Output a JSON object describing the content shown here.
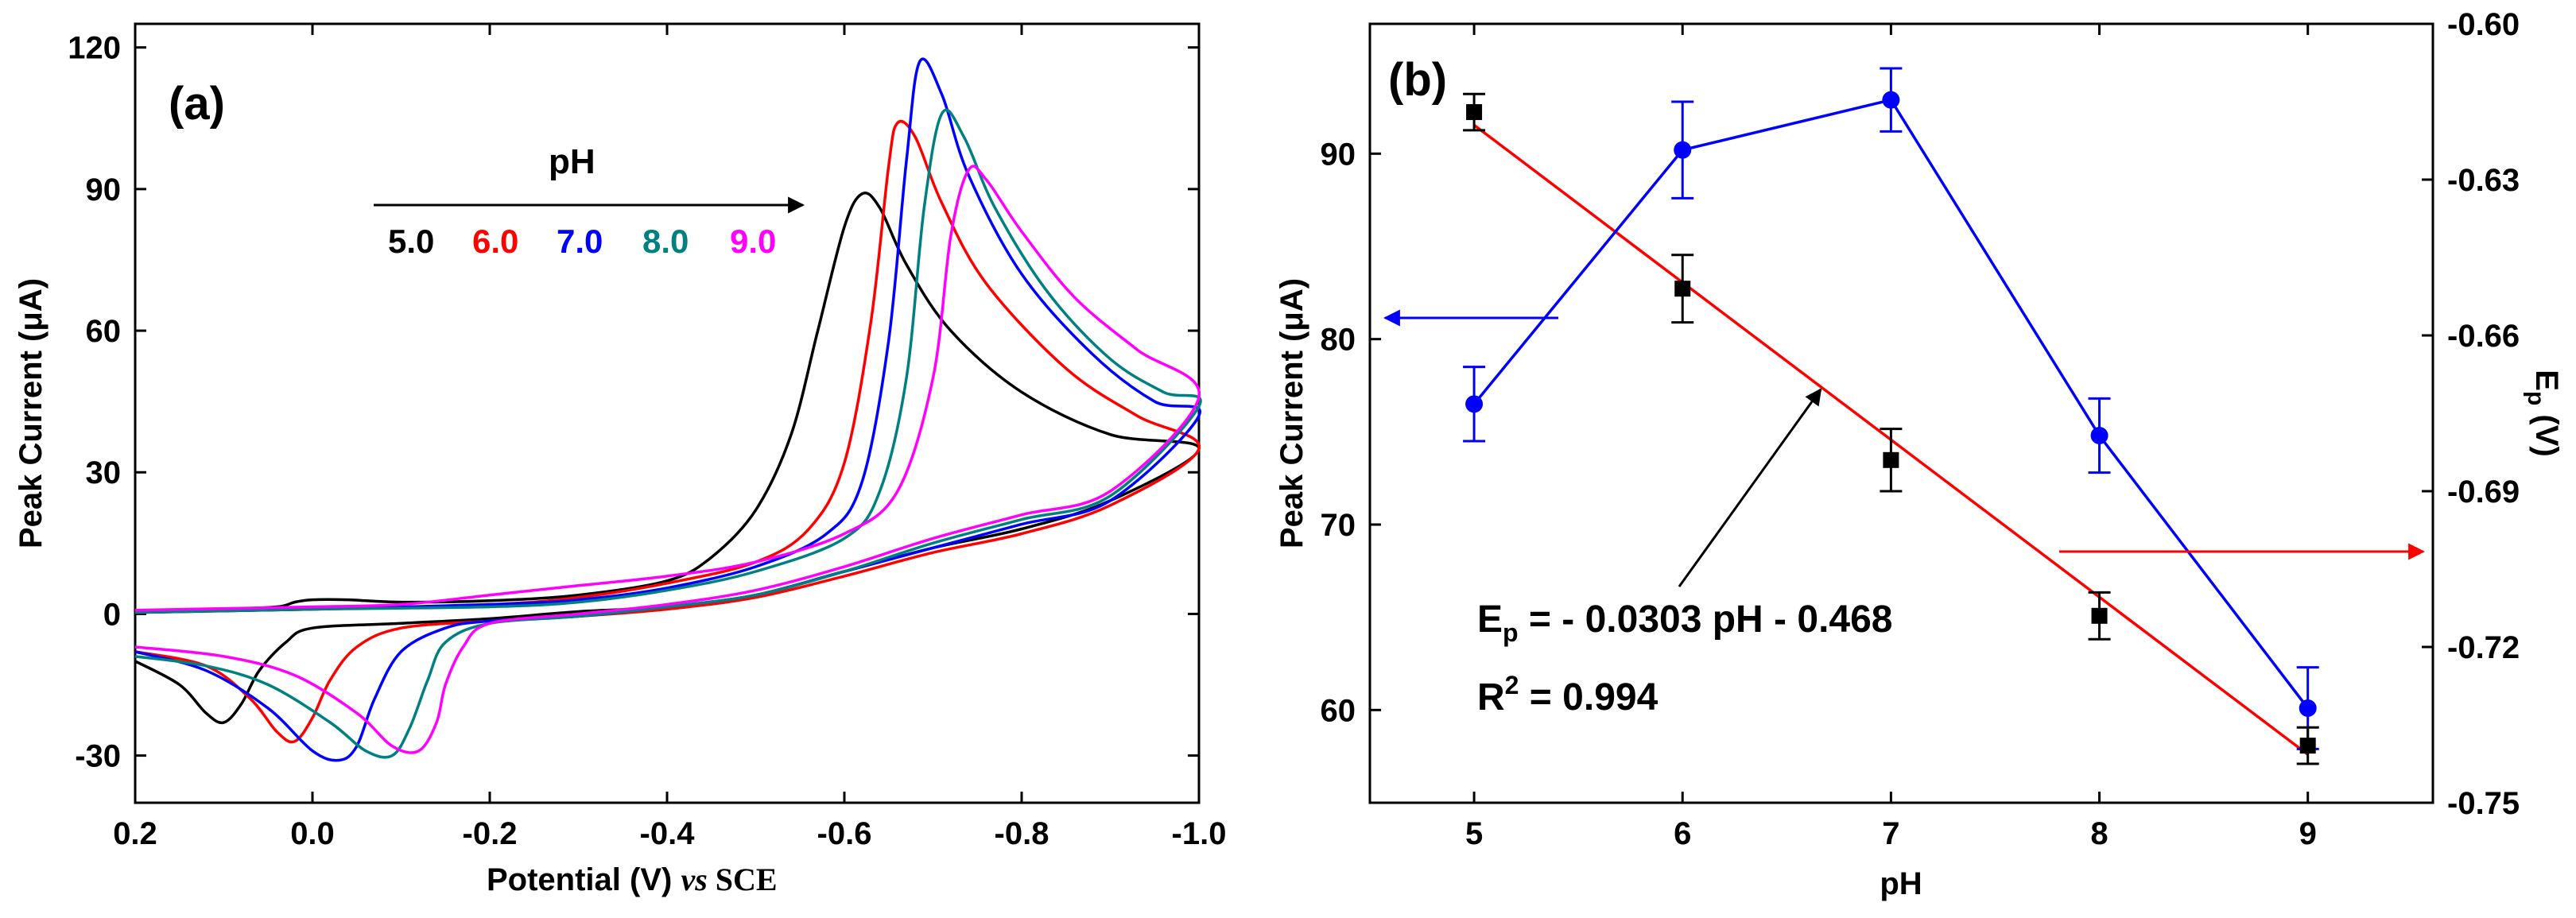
{
  "chart_data": [
    {
      "panel": "(a)",
      "type": "line",
      "xlabel_parts": [
        "Potential (V) ",
        "vs",
        " SCE"
      ],
      "ylabel": "Peak Current (μA)",
      "xlim": [
        0.2,
        -1.0
      ],
      "ylim": [
        -40,
        125
      ],
      "x_ticks": [
        0.2,
        0.0,
        -0.2,
        -0.4,
        -0.6,
        -0.8,
        -1.0
      ],
      "x_tick_labels": [
        "0.2",
        "0.0",
        "-0.2",
        "-0.4",
        "-0.6",
        "-0.8",
        "-1.0"
      ],
      "y_ticks": [
        -30,
        0,
        30,
        60,
        90,
        120
      ],
      "y_tick_labels": [
        "-30",
        "0",
        "30",
        "60",
        "90",
        "120"
      ],
      "annotation_title": "pH",
      "series": [
        {
          "name": "5.0",
          "color": "#000000",
          "forward": [
            [
              0.2,
              0.5
            ],
            [
              0.1,
              1
            ],
            [
              0.04,
              1.5
            ],
            [
              0.02,
              2.5
            ],
            [
              0.0,
              3
            ],
            [
              -0.04,
              3
            ],
            [
              -0.1,
              2.5
            ],
            [
              -0.2,
              2.8
            ],
            [
              -0.3,
              4
            ],
            [
              -0.4,
              7
            ],
            [
              -0.45,
              12
            ],
            [
              -0.5,
              22
            ],
            [
              -0.54,
              38
            ],
            [
              -0.57,
              60
            ],
            [
              -0.6,
              82
            ],
            [
              -0.62,
              89
            ],
            [
              -0.64,
              86
            ],
            [
              -0.67,
              74
            ],
            [
              -0.72,
              60
            ],
            [
              -0.8,
              47
            ],
            [
              -0.9,
              38
            ],
            [
              -1.0,
              35
            ]
          ],
          "reverse": [
            [
              -1.0,
              35
            ],
            [
              -0.9,
              24
            ],
            [
              -0.8,
              18
            ],
            [
              -0.7,
              14
            ],
            [
              -0.6,
              9
            ],
            [
              -0.5,
              4
            ],
            [
              -0.4,
              1.5
            ],
            [
              -0.3,
              0.5
            ],
            [
              -0.2,
              -1
            ],
            [
              -0.1,
              -2
            ],
            [
              0.0,
              -3
            ],
            [
              0.03,
              -6
            ],
            [
              0.06,
              -12
            ],
            [
              0.08,
              -19
            ],
            [
              0.1,
              -23
            ],
            [
              0.12,
              -21
            ],
            [
              0.15,
              -15
            ],
            [
              0.2,
              -10
            ]
          ]
        },
        {
          "name": "6.0",
          "color": "#ff0000",
          "forward": [
            [
              0.2,
              0.3
            ],
            [
              0.0,
              1
            ],
            [
              -0.2,
              2
            ],
            [
              -0.3,
              3.5
            ],
            [
              -0.4,
              6.5
            ],
            [
              -0.5,
              11
            ],
            [
              -0.56,
              18
            ],
            [
              -0.6,
              32
            ],
            [
              -0.63,
              62
            ],
            [
              -0.65,
              95
            ],
            [
              -0.66,
              104
            ],
            [
              -0.68,
              101
            ],
            [
              -0.71,
              87
            ],
            [
              -0.76,
              70
            ],
            [
              -0.85,
              52
            ],
            [
              -0.93,
              42
            ],
            [
              -1.0,
              35
            ]
          ],
          "reverse": [
            [
              -1.0,
              33
            ],
            [
              -0.9,
              23
            ],
            [
              -0.8,
              17
            ],
            [
              -0.7,
              13
            ],
            [
              -0.6,
              8
            ],
            [
              -0.5,
              3.5
            ],
            [
              -0.4,
              1
            ],
            [
              -0.3,
              -0.5
            ],
            [
              -0.2,
              -1.5
            ],
            [
              -0.1,
              -3
            ],
            [
              -0.05,
              -7
            ],
            [
              -0.02,
              -14
            ],
            [
              0.0,
              -22
            ],
            [
              0.02,
              -27
            ],
            [
              0.04,
              -25
            ],
            [
              0.07,
              -18
            ],
            [
              0.12,
              -11
            ],
            [
              0.2,
              -8
            ]
          ]
        },
        {
          "name": "7.0",
          "color": "#0000ff",
          "forward": [
            [
              0.2,
              0.3
            ],
            [
              0.0,
              1
            ],
            [
              -0.2,
              2
            ],
            [
              -0.3,
              3
            ],
            [
              -0.4,
              5.5
            ],
            [
              -0.5,
              10
            ],
            [
              -0.58,
              17
            ],
            [
              -0.62,
              28
            ],
            [
              -0.65,
              58
            ],
            [
              -0.67,
              96
            ],
            [
              -0.685,
              117
            ],
            [
              -0.71,
              110
            ],
            [
              -0.74,
              93
            ],
            [
              -0.8,
              72
            ],
            [
              -0.88,
              55
            ],
            [
              -0.95,
              45
            ],
            [
              -1.0,
              42
            ]
          ],
          "reverse": [
            [
              -1.0,
              38
            ],
            [
              -0.9,
              24
            ],
            [
              -0.8,
              19
            ],
            [
              -0.7,
              14
            ],
            [
              -0.6,
              9
            ],
            [
              -0.5,
              4
            ],
            [
              -0.4,
              1.5
            ],
            [
              -0.3,
              -0.5
            ],
            [
              -0.2,
              -1.5
            ],
            [
              -0.15,
              -3
            ],
            [
              -0.1,
              -8
            ],
            [
              -0.07,
              -18
            ],
            [
              -0.05,
              -28
            ],
            [
              -0.03,
              -31
            ],
            [
              0.0,
              -29
            ],
            [
              0.05,
              -20
            ],
            [
              0.12,
              -12
            ],
            [
              0.2,
              -8
            ]
          ]
        },
        {
          "name": "8.0",
          "color": "#008080",
          "forward": [
            [
              0.2,
              0.3
            ],
            [
              0.0,
              1
            ],
            [
              -0.2,
              1.5
            ],
            [
              -0.3,
              2.5
            ],
            [
              -0.4,
              5
            ],
            [
              -0.5,
              9
            ],
            [
              -0.6,
              16
            ],
            [
              -0.64,
              26
            ],
            [
              -0.67,
              50
            ],
            [
              -0.69,
              86
            ],
            [
              -0.71,
              106
            ],
            [
              -0.735,
              101
            ],
            [
              -0.77,
              86
            ],
            [
              -0.83,
              68
            ],
            [
              -0.9,
              54
            ],
            [
              -0.96,
              47
            ],
            [
              -1.0,
              44
            ]
          ],
          "reverse": [
            [
              -1.0,
              40
            ],
            [
              -0.9,
              25
            ],
            [
              -0.8,
              20
            ],
            [
              -0.7,
              15
            ],
            [
              -0.6,
              9
            ],
            [
              -0.5,
              4
            ],
            [
              -0.4,
              1.5
            ],
            [
              -0.3,
              -0.5
            ],
            [
              -0.2,
              -2
            ],
            [
              -0.15,
              -6
            ],
            [
              -0.13,
              -14
            ],
            [
              -0.11,
              -24
            ],
            [
              -0.09,
              -30
            ],
            [
              -0.06,
              -29
            ],
            [
              -0.02,
              -23
            ],
            [
              0.05,
              -15
            ],
            [
              0.12,
              -11
            ],
            [
              0.2,
              -9
            ]
          ]
        },
        {
          "name": "9.0",
          "color": "#ff00ff",
          "forward": [
            [
              0.2,
              0.8
            ],
            [
              0.0,
              1.5
            ],
            [
              -0.1,
              2
            ],
            [
              -0.2,
              4
            ],
            [
              -0.3,
              6
            ],
            [
              -0.4,
              8
            ],
            [
              -0.5,
              11
            ],
            [
              -0.6,
              17
            ],
            [
              -0.66,
              26
            ],
            [
              -0.7,
              50
            ],
            [
              -0.72,
              80
            ],
            [
              -0.74,
              94
            ],
            [
              -0.76,
              92
            ],
            [
              -0.8,
              81
            ],
            [
              -0.86,
              67
            ],
            [
              -0.93,
              56
            ],
            [
              -1.0,
              46
            ]
          ],
          "reverse": [
            [
              -1.0,
              44
            ],
            [
              -0.9,
              26
            ],
            [
              -0.8,
              21
            ],
            [
              -0.7,
              16
            ],
            [
              -0.6,
              10
            ],
            [
              -0.5,
              5
            ],
            [
              -0.4,
              2
            ],
            [
              -0.3,
              0
            ],
            [
              -0.2,
              -2
            ],
            [
              -0.17,
              -7
            ],
            [
              -0.15,
              -15
            ],
            [
              -0.14,
              -23
            ],
            [
              -0.12,
              -29
            ],
            [
              -0.09,
              -28
            ],
            [
              -0.05,
              -21
            ],
            [
              0.02,
              -13
            ],
            [
              0.1,
              -9
            ],
            [
              0.2,
              -7
            ]
          ]
        }
      ]
    },
    {
      "panel": "(b)",
      "type": "line",
      "xlabel": "pH",
      "ylabel_left": "Peak Current (μA)",
      "ylabel_right_main": "E",
      "ylabel_right_sub": "p",
      "ylabel_right_unit": " (V)",
      "xlim": [
        4.5,
        9.6
      ],
      "ylim_left": [
        55,
        97
      ],
      "ylim_right": [
        -0.75,
        -0.6
      ],
      "x_ticks": [
        5,
        6,
        7,
        8,
        9
      ],
      "x_tick_labels": [
        "5",
        "6",
        "7",
        "8",
        "9"
      ],
      "y_ticks_left": [
        60,
        70,
        80,
        90
      ],
      "y_tick_labels_left": [
        "60",
        "70",
        "80",
        "90"
      ],
      "y_ticks_right": [
        -0.75,
        -0.72,
        -0.69,
        -0.66,
        -0.63,
        -0.6
      ],
      "y_tick_labels_right": [
        "-0.75",
        "-0.72",
        "-0.69",
        "-0.66",
        "-0.63",
        "-0.60"
      ],
      "series": [
        {
          "name": "Peak Current",
          "axis": "left",
          "color": "#0000ff",
          "x": [
            5,
            6,
            7,
            8,
            9
          ],
          "y": [
            76.5,
            90.2,
            92.9,
            74.8,
            60.1
          ],
          "error": [
            2.0,
            2.6,
            1.7,
            2.0,
            2.2
          ]
        },
        {
          "name": "Ep",
          "axis": "right",
          "color": "#000000",
          "x": [
            5,
            6,
            7,
            8,
            9
          ],
          "y": [
            -0.617,
            -0.651,
            -0.684,
            -0.714,
            -0.739
          ],
          "error": [
            0.0035,
            0.0065,
            0.006,
            0.0045,
            0.0035
          ]
        }
      ],
      "fit": {
        "color": "#ff0000",
        "axis": "right",
        "x": [
          5,
          9
        ],
        "y": [
          -0.6195,
          -0.7407
        ]
      },
      "equation_parts": [
        "E",
        "p",
        " = - 0.0303 pH - 0.468"
      ],
      "r2_parts": [
        "R",
        "2",
        " = 0.994"
      ]
    }
  ]
}
